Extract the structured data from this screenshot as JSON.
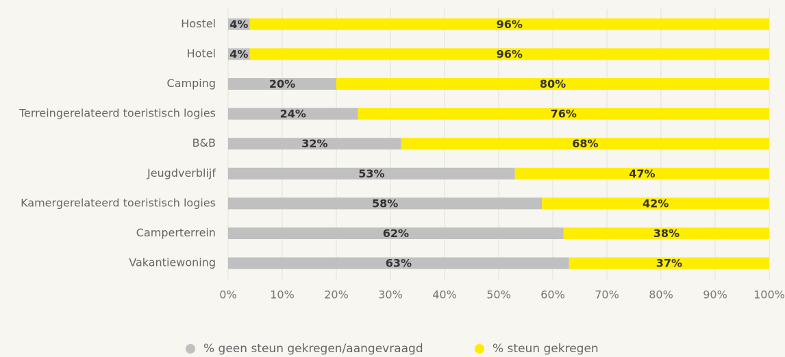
{
  "chart_data": {
    "type": "stacked_barh",
    "categories": [
      "Hostel",
      "Hotel",
      "Camping",
      "Terreingerelateerd toeristisch logies",
      "B&B",
      "Jeugdverblijf",
      "Kamergerelateerd toeristisch logies",
      "Camperterrein",
      "Vakantiewoning"
    ],
    "series": [
      {
        "name": "% geen steun gekregen/aangevraagd",
        "color": "#c0c0c0",
        "values": [
          4,
          4,
          20,
          24,
          32,
          53,
          58,
          62,
          63
        ],
        "value_labels": [
          "4%",
          "4%",
          "20%",
          "24%",
          "32%",
          "53%",
          "58%",
          "62%",
          "63%"
        ]
      },
      {
        "name": "% steun gekregen",
        "color": "#ffed00",
        "values": [
          96,
          96,
          80,
          76,
          68,
          47,
          42,
          38,
          37
        ],
        "value_labels": [
          "96%",
          "96%",
          "80%",
          "76%",
          "68%",
          "47%",
          "42%",
          "38%",
          "37%"
        ]
      }
    ],
    "xlim": [
      0,
      100
    ],
    "xticks": [
      {
        "value": 0,
        "label": "0%"
      },
      {
        "value": 10,
        "label": "10%"
      },
      {
        "value": 20,
        "label": "20%"
      },
      {
        "value": 30,
        "label": "30%"
      },
      {
        "value": 40,
        "label": "40%"
      },
      {
        "value": 50,
        "label": "50%"
      },
      {
        "value": 60,
        "label": "60%"
      },
      {
        "value": 70,
        "label": "70%"
      },
      {
        "value": 80,
        "label": "80%"
      },
      {
        "value": 90,
        "label": "90%"
      },
      {
        "value": 100,
        "label": "100%"
      }
    ],
    "grid": true,
    "legend": "bottom"
  }
}
